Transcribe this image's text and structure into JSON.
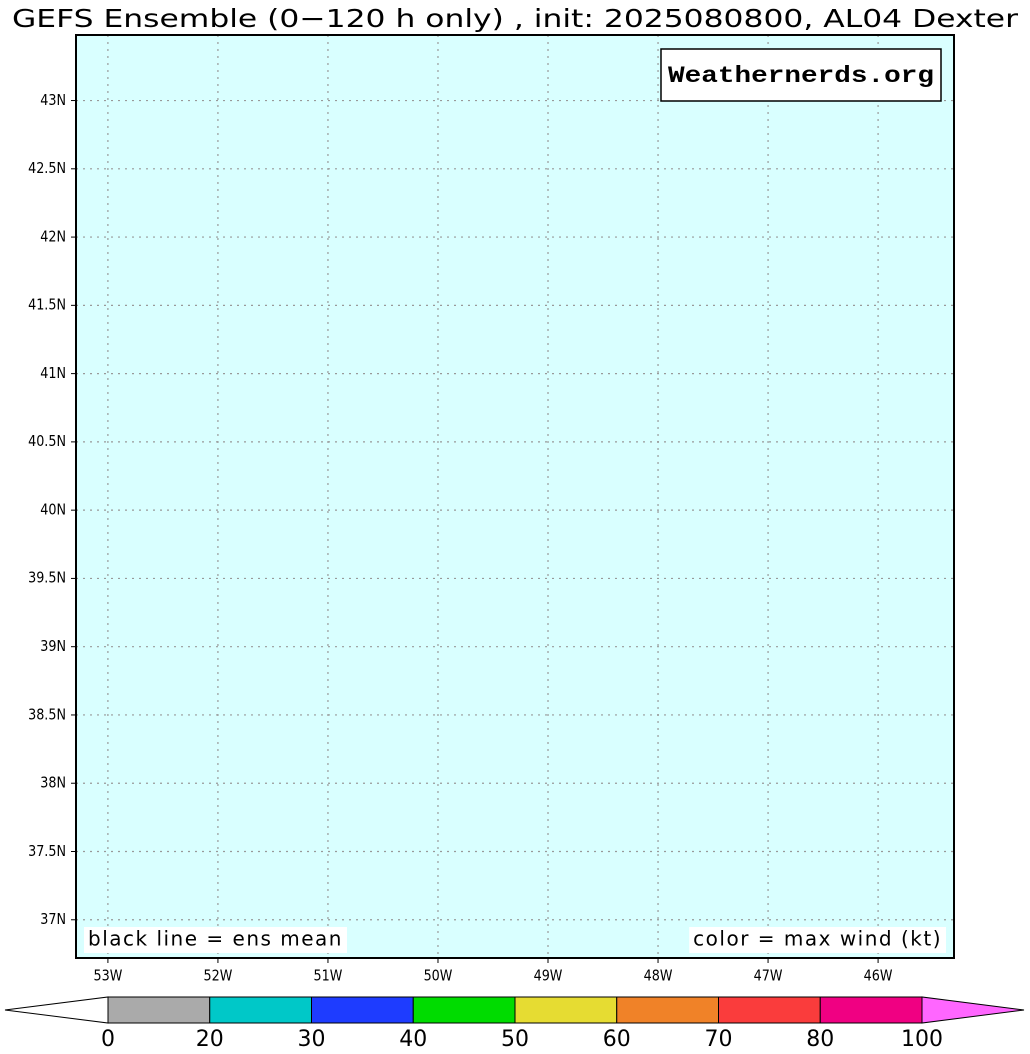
{
  "chart_data": {
    "type": "map",
    "title": "GEFS Ensemble (0−120 h only) , init: 2025080800, AL04 Dexter",
    "xlim": [
      -53.29,
      -45.31
    ],
    "ylim": [
      36.72,
      43.48
    ],
    "xticks": [
      {
        "value": -53,
        "label": "53W"
      },
      {
        "value": -52,
        "label": "52W"
      },
      {
        "value": -51,
        "label": "51W"
      },
      {
        "value": -50,
        "label": "50W"
      },
      {
        "value": -49,
        "label": "49W"
      },
      {
        "value": -48,
        "label": "48W"
      },
      {
        "value": -47,
        "label": "47W"
      },
      {
        "value": -46,
        "label": "46W"
      }
    ],
    "yticks": [
      {
        "value": 37,
        "label": "37N"
      },
      {
        "value": 37.5,
        "label": "37.5N"
      },
      {
        "value": 38,
        "label": "38N"
      },
      {
        "value": 38.5,
        "label": "38.5N"
      },
      {
        "value": 39,
        "label": "39N"
      },
      {
        "value": 39.5,
        "label": "39.5N"
      },
      {
        "value": 40,
        "label": "40N"
      },
      {
        "value": 40.5,
        "label": "40.5N"
      },
      {
        "value": 41,
        "label": "41N"
      },
      {
        "value": 41.5,
        "label": "41.5N"
      },
      {
        "value": 42,
        "label": "42N"
      },
      {
        "value": 42.5,
        "label": "42.5N"
      },
      {
        "value": 43,
        "label": "43N"
      }
    ],
    "grid": true,
    "background": "#d9ffff",
    "annotations": [
      "black line = ens mean",
      "color = max wind (kt)"
    ],
    "watermark": "Weathernerds.org",
    "colorbar": {
      "levels": [
        0,
        20,
        30,
        40,
        50,
        60,
        70,
        80,
        100
      ],
      "colors": [
        "#aaaaaa",
        "#00c8c8",
        "#1e3cff",
        "#00dc00",
        "#e6dc32",
        "#f08228",
        "#fa3c3c",
        "#f00082"
      ],
      "under_color": "#ffffff",
      "over_color": "#ff66ff"
    }
  }
}
